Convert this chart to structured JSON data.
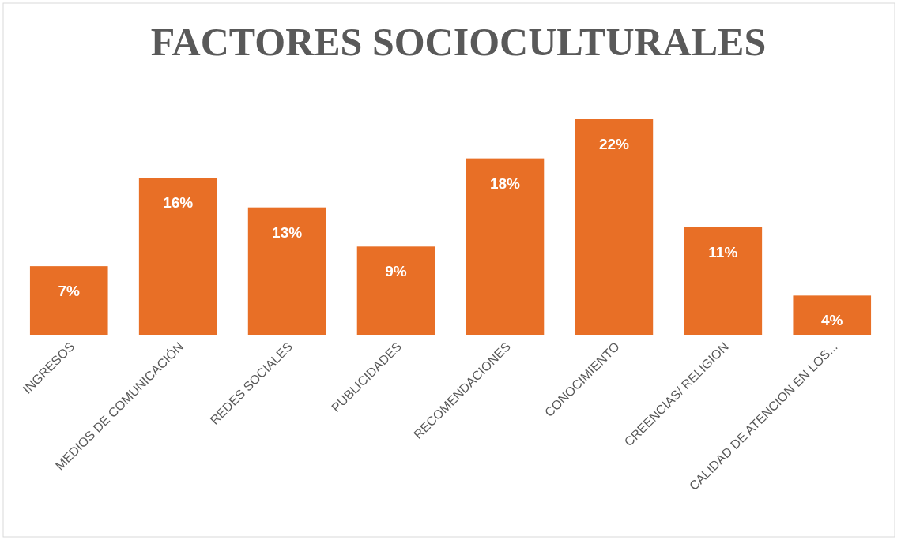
{
  "chart_data": {
    "type": "bar",
    "title": "FACTORES SOCIOCULTURALES",
    "categories": [
      "INGRESOS",
      "MEDIOS DE COMUNICACIÓN",
      "REDES SOCIALES",
      "PUBLICIDADES",
      "RECOMENDACIONES",
      "CONOCIMIENTO",
      "CREENCIAS/ RELIGION",
      "CALIDAD DE ATENCION EN LOS..."
    ],
    "values": [
      7,
      16,
      13,
      9,
      18,
      22,
      11,
      4
    ],
    "value_labels": [
      "7%",
      "16%",
      "13%",
      "9%",
      "18%",
      "22%",
      "11%",
      "4%"
    ],
    "color": "#e86f26"
  }
}
